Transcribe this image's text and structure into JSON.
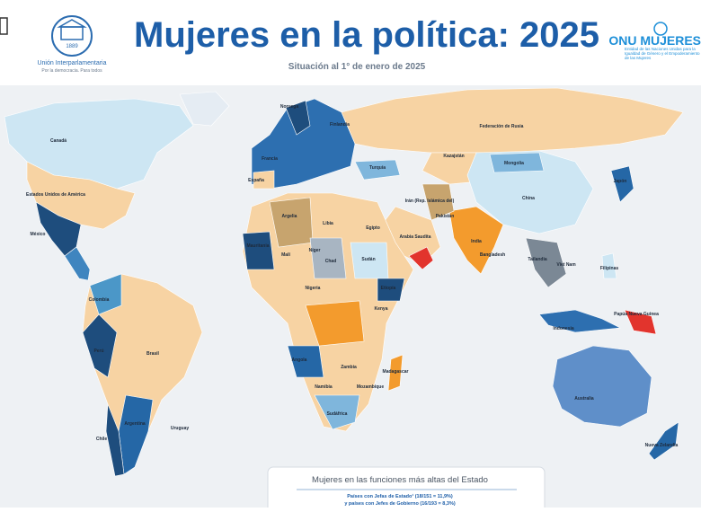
{
  "header": {
    "title": "Mujeres en la política: 2025",
    "subtitle": "Situación al 1° de enero de 2025",
    "ipu": {
      "year": "1889",
      "name": "Unión Interparlamentaria",
      "tagline": "Por la democracia. Para todos"
    },
    "unwomen": {
      "name": "ONU MUJERES",
      "tagline": "Entidad de las Naciones Unidas para la Igualdad de Género y el Empoderamiento de las Mujeres"
    }
  },
  "map": {
    "labels": [
      "Canadá",
      "Estados Unidos de América",
      "México",
      "Colombia",
      "Perú",
      "Brasil",
      "Argentina",
      "Chile",
      "Uruguay",
      "Federación de Rusia",
      "Mongolia",
      "China",
      "Kazajstán",
      "India",
      "Pakistán",
      "Bangladesh",
      "Japón",
      "Filipinas",
      "Indonesia",
      "Papúa Nueva Guinea",
      "Australia",
      "Nueva Zelandia",
      "Argelia",
      "Libia",
      "Egipto",
      "Malí",
      "Níger",
      "Chad",
      "Sudán",
      "Etiopía",
      "Nigeria",
      "Kenya",
      "Angola",
      "Zambia",
      "Namibia",
      "Sudáfrica",
      "Mozambique",
      "Madagascar",
      "Arabia Saudita",
      "Irán (Rep. Islámica del)",
      "Turquía",
      "Mauritania",
      "Noruega",
      "Finlandia",
      "Francia",
      "España",
      "Tailandia",
      "Viet Nam"
    ]
  },
  "box": {
    "title": "Mujeres en las funciones más altas del Estado",
    "line1": "Países con Jefas de Estado¹ (18/151 = 11,9%)",
    "line2": "y países con Jefes de Gobierno (16/193 = 8,3%)"
  }
}
